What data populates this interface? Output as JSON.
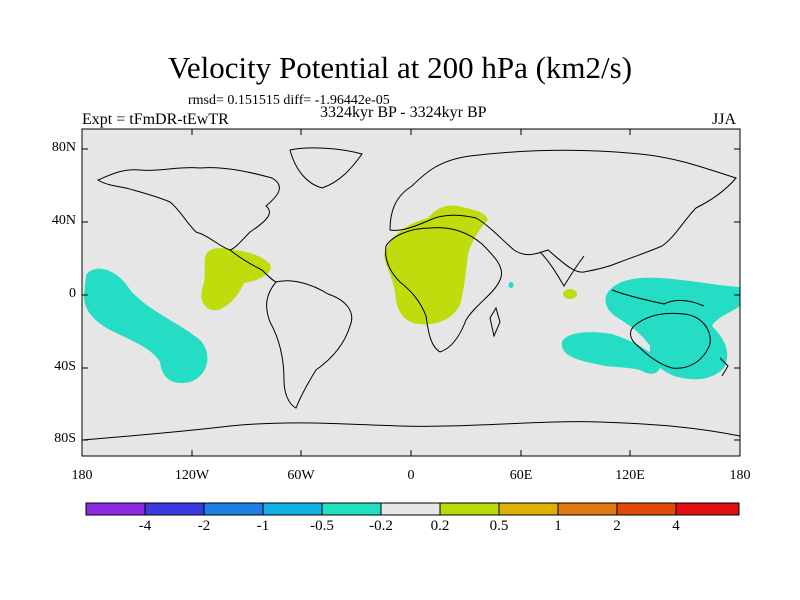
{
  "title": "Velocity Potential at 200 hPa (km2/s)",
  "stats": "rmsd= 0.151515  diff= -1.96442e-05",
  "expt": "Expt = tFmDR-tEwTR",
  "period": "3324kyr BP - 3324kyr BP",
  "season": "JJA",
  "y_labels": [
    "80N",
    "40N",
    "0",
    "40S",
    "80S"
  ],
  "x_labels": [
    "180",
    "120W",
    "60W",
    "0",
    "60E",
    "120E",
    "180"
  ],
  "colorbar": {
    "labels": [
      "-4",
      "-2",
      "-1",
      "-0.5",
      "-0.2",
      "0.2",
      "0.5",
      "1",
      "2",
      "4"
    ],
    "colors": [
      "#8a2be2",
      "#3a3ae0",
      "#1e7fe6",
      "#11b0e6",
      "#20e0c0",
      "#e6e6e6",
      "#bada0a",
      "#e0b000",
      "#e07a10",
      "#e04a0a",
      "#e01010"
    ]
  },
  "colors": {
    "ocean_land": "#e6e6e6",
    "negative": "#25dcc4",
    "positive": "#bfdc0c"
  },
  "anomaly_regions": [
    {
      "name": "central-pacific-negative",
      "sign": "negative",
      "lon_range": [
        -175,
        -130
      ],
      "lat_range": [
        -47,
        22
      ]
    },
    {
      "name": "central-america-positive",
      "sign": "positive",
      "lon_range": [
        -115,
        -80
      ],
      "lat_range": [
        -6,
        28
      ]
    },
    {
      "name": "africa-mediterranean-positive",
      "sign": "positive",
      "lon_range": [
        -15,
        45
      ],
      "lat_range": [
        -15,
        47
      ]
    },
    {
      "name": "indian-ocean-small-positive",
      "sign": "positive",
      "lon_range": [
        85,
        90
      ],
      "lat_range": [
        -3,
        2
      ]
    },
    {
      "name": "maritime-continent-australia-negative",
      "sign": "negative",
      "lon_range": [
        95,
        180
      ],
      "lat_range": [
        -48,
        8
      ]
    },
    {
      "name": "south-indian-ocean-negative",
      "sign": "negative",
      "lon_range": [
        83,
        130
      ],
      "lat_range": [
        -45,
        -22
      ]
    }
  ]
}
